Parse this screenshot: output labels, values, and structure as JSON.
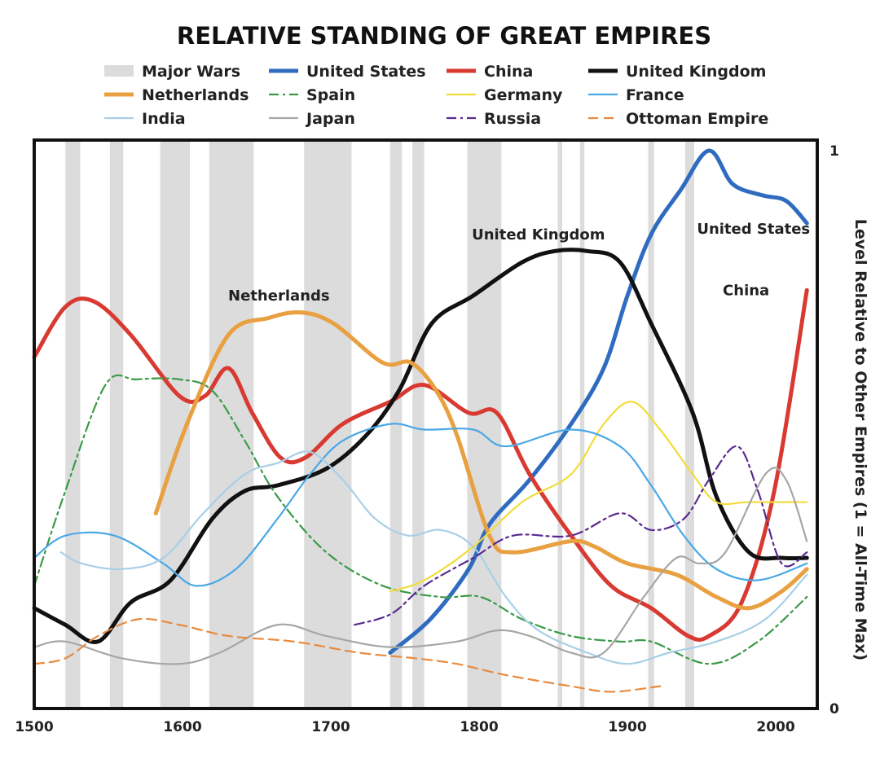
{
  "chart_data": {
    "type": "line",
    "title": "RELATIVE STANDING OF GREAT EMPIRES",
    "xlabel": "",
    "ylabel": "Level Relative to Other Empires (1 = All-Time Max)",
    "xlim": [
      1500,
      2028
    ],
    "ylim": [
      0,
      1
    ],
    "x_ticks": [
      1500,
      1600,
      1700,
      1800,
      1900,
      2000
    ],
    "y_ticks": [
      0,
      1
    ],
    "grid": false,
    "legend_position": "top",
    "shaded_regions": {
      "name": "Major Wars",
      "color": "#dcdcdc",
      "ranges": [
        [
          1521,
          1531
        ],
        [
          1551,
          1560
        ],
        [
          1585,
          1605
        ],
        [
          1618,
          1648
        ],
        [
          1682,
          1714
        ],
        [
          1740,
          1748
        ],
        [
          1755,
          1763
        ],
        [
          1792,
          1815
        ],
        [
          1853,
          1856
        ],
        [
          1868,
          1871
        ],
        [
          1914,
          1918
        ],
        [
          1939,
          1945
        ]
      ]
    },
    "series": [
      {
        "name": "United States",
        "color": "#2f6cc0",
        "style": "solid",
        "width": 5,
        "x": [
          1740,
          1767,
          1793,
          1807,
          1834,
          1862,
          1884,
          1900,
          1916,
          1936,
          1955,
          1971,
          1991,
          2007,
          2021
        ],
        "y": [
          0.1,
          0.16,
          0.25,
          0.33,
          0.41,
          0.51,
          0.61,
          0.74,
          0.85,
          0.93,
          1.0,
          0.94,
          0.92,
          0.91,
          0.87
        ]
      },
      {
        "name": "China",
        "color": "#d83a32",
        "style": "solid",
        "width": 5,
        "x": [
          1500,
          1521,
          1540,
          1565,
          1598,
          1615,
          1631,
          1647,
          1666,
          1683,
          1708,
          1740,
          1763,
          1793,
          1812,
          1834,
          1862,
          1889,
          1916,
          1941,
          1955,
          1977,
          1999,
          2021
        ],
        "y": [
          0.63,
          0.72,
          0.73,
          0.67,
          0.56,
          0.56,
          0.61,
          0.53,
          0.45,
          0.45,
          0.51,
          0.55,
          0.58,
          0.53,
          0.53,
          0.42,
          0.31,
          0.22,
          0.18,
          0.13,
          0.13,
          0.19,
          0.39,
          0.75
        ]
      },
      {
        "name": "United Kingdom",
        "color": "#111111",
        "style": "solid",
        "width": 5,
        "x": [
          1500,
          1521,
          1543,
          1565,
          1592,
          1620,
          1642,
          1664,
          1697,
          1724,
          1746,
          1768,
          1796,
          1829,
          1851,
          1873,
          1895,
          1916,
          1944,
          1960,
          1982,
          2004,
          2021
        ],
        "y": [
          0.18,
          0.15,
          0.12,
          0.19,
          0.23,
          0.34,
          0.39,
          0.4,
          0.43,
          0.49,
          0.57,
          0.69,
          0.74,
          0.8,
          0.82,
          0.82,
          0.8,
          0.69,
          0.53,
          0.38,
          0.28,
          0.27,
          0.27
        ]
      },
      {
        "name": "Netherlands",
        "color": "#e9a040",
        "style": "solid",
        "width": 5,
        "x": [
          1582,
          1603,
          1631,
          1658,
          1680,
          1702,
          1735,
          1754,
          1771,
          1785,
          1807,
          1823,
          1862,
          1878,
          1900,
          1933,
          1960,
          1982,
          2004,
          2021
        ],
        "y": [
          0.35,
          0.51,
          0.67,
          0.7,
          0.71,
          0.69,
          0.62,
          0.62,
          0.57,
          0.49,
          0.31,
          0.28,
          0.3,
          0.29,
          0.26,
          0.24,
          0.2,
          0.18,
          0.21,
          0.25
        ]
      },
      {
        "name": "Spain",
        "color": "#3a9a48",
        "style": "dashdot",
        "width": 2.2,
        "x": [
          1500,
          1521,
          1548,
          1569,
          1598,
          1620,
          1642,
          1664,
          1697,
          1735,
          1774,
          1801,
          1829,
          1862,
          1895,
          1916,
          1955,
          1988,
          2021
        ],
        "y": [
          0.22,
          0.39,
          0.58,
          0.59,
          0.59,
          0.57,
          0.48,
          0.38,
          0.28,
          0.22,
          0.2,
          0.2,
          0.16,
          0.13,
          0.12,
          0.12,
          0.08,
          0.12,
          0.2
        ]
      },
      {
        "name": "Germany",
        "color": "#f2dc3a",
        "style": "solid",
        "width": 2.2,
        "x": [
          1740,
          1763,
          1796,
          1829,
          1862,
          1884,
          1903,
          1922,
          1944,
          1960,
          1982,
          2021
        ],
        "y": [
          0.21,
          0.23,
          0.29,
          0.37,
          0.42,
          0.51,
          0.55,
          0.5,
          0.42,
          0.37,
          0.37,
          0.37
        ]
      },
      {
        "name": "France",
        "color": "#4aa8e6",
        "style": "solid",
        "width": 2.2,
        "x": [
          1500,
          1521,
          1554,
          1587,
          1609,
          1636,
          1664,
          1686,
          1708,
          1740,
          1763,
          1796,
          1818,
          1862,
          1895,
          1916,
          1938,
          1960,
          1988,
          2021
        ],
        "y": [
          0.27,
          0.31,
          0.31,
          0.26,
          0.22,
          0.25,
          0.34,
          0.42,
          0.48,
          0.51,
          0.5,
          0.5,
          0.47,
          0.5,
          0.47,
          0.4,
          0.31,
          0.25,
          0.23,
          0.26
        ]
      },
      {
        "name": "India",
        "color": "#a8cfe6",
        "style": "solid",
        "width": 2.2,
        "x": [
          1518,
          1532,
          1559,
          1587,
          1614,
          1642,
          1664,
          1686,
          1708,
          1730,
          1752,
          1774,
          1796,
          1818,
          1840,
          1873,
          1900,
          1928,
          1960,
          1993,
          2021
        ],
        "y": [
          0.28,
          0.26,
          0.25,
          0.27,
          0.35,
          0.42,
          0.44,
          0.46,
          0.41,
          0.34,
          0.31,
          0.32,
          0.29,
          0.2,
          0.14,
          0.1,
          0.08,
          0.1,
          0.12,
          0.16,
          0.24
        ]
      },
      {
        "name": "Japan",
        "color": "#a6a6a6",
        "style": "solid",
        "width": 2.2,
        "x": [
          1500,
          1521,
          1559,
          1598,
          1625,
          1664,
          1697,
          1740,
          1785,
          1812,
          1834,
          1862,
          1884,
          1911,
          1933,
          1949,
          1966,
          1993,
          2007,
          2021
        ],
        "y": [
          0.11,
          0.12,
          0.09,
          0.08,
          0.1,
          0.15,
          0.13,
          0.11,
          0.12,
          0.14,
          0.13,
          0.1,
          0.1,
          0.2,
          0.27,
          0.26,
          0.28,
          0.42,
          0.41,
          0.3
        ]
      },
      {
        "name": "Russia",
        "color": "#5a2a90",
        "style": "dashdot",
        "width": 2.2,
        "x": [
          1716,
          1741,
          1763,
          1796,
          1823,
          1862,
          1895,
          1916,
          1938,
          1955,
          1974,
          1988,
          2004,
          2021
        ],
        "y": [
          0.15,
          0.17,
          0.22,
          0.27,
          0.31,
          0.31,
          0.35,
          0.32,
          0.34,
          0.41,
          0.47,
          0.39,
          0.26,
          0.28
        ]
      },
      {
        "name": "Ottoman Empire",
        "color": "#e88a3e",
        "style": "dashed",
        "width": 2.2,
        "x": [
          1500,
          1521,
          1543,
          1570,
          1598,
          1631,
          1675,
          1719,
          1757,
          1785,
          1818,
          1862,
          1889,
          1922
        ],
        "y": [
          0.08,
          0.09,
          0.13,
          0.16,
          0.15,
          0.13,
          0.12,
          0.1,
          0.09,
          0.08,
          0.06,
          0.04,
          0.03,
          0.04
        ]
      }
    ],
    "annotations": [
      {
        "text": "Netherlands",
        "x": 1665,
        "y": 0.74
      },
      {
        "text": "United Kingdom",
        "x": 1840,
        "y": 0.85
      },
      {
        "text": "United States",
        "x": 1985,
        "y": 0.86
      },
      {
        "text": "China",
        "x": 1980,
        "y": 0.75
      }
    ]
  }
}
